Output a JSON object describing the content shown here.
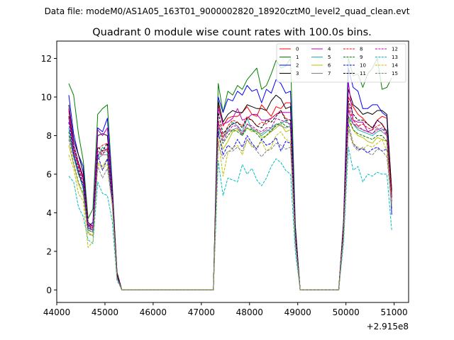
{
  "chart_data": {
    "type": "line",
    "suptitle": "Data file: modeM0/AS1A05_163T01_9000002820_18920cztM0_level2_quad_clean.evt",
    "title": "Quadrant 0 module wise count rates with 100.0s bins.",
    "xlabel": "",
    "ylabel": "",
    "x_offset_label": "+2.915e8",
    "xlim": [
      44000,
      51300
    ],
    "ylim": [
      -0.65,
      12.9
    ],
    "xticks": [
      44000,
      45000,
      46000,
      47000,
      48000,
      49000,
      50000,
      51000
    ],
    "xtick_labels": [
      "44000",
      "45000",
      "46000",
      "47000",
      "48000",
      "49000",
      "50000",
      "51000"
    ],
    "yticks": [
      0,
      2,
      4,
      6,
      8,
      10,
      12
    ],
    "ytick_labels": [
      "0",
      "2",
      "4",
      "6",
      "8",
      "10",
      "12"
    ],
    "grid": false,
    "legend_position": "top-right",
    "legend_columns": 4,
    "segments": [
      {
        "start": 44250,
        "step": 100,
        "count": 10
      },
      {
        "start": 45250,
        "step": 100,
        "count": 21
      },
      {
        "start": 47350,
        "step": 100,
        "count": 16
      },
      {
        "start": 48950,
        "step": 100,
        "count": 2
      },
      {
        "start": 49050,
        "step": 100,
        "count": 10
      },
      {
        "start": 50050,
        "step": 100,
        "count": 10
      }
    ],
    "series": [
      {
        "name": "0",
        "color": "#ff0000",
        "dash": "solid",
        "values": [
          9.3,
          7.2,
          6.5,
          5.8,
          3.4,
          3.2,
          7.0,
          7.2,
          7.3,
          5.0,
          0.8,
          0,
          0,
          0,
          0,
          0,
          0,
          0,
          0,
          0,
          0,
          0,
          0,
          0,
          0,
          0,
          0,
          0,
          0,
          0,
          0,
          9.6,
          8.5,
          8.9,
          9.0,
          9.0,
          9.2,
          9.5,
          9.1,
          9.0,
          9.6,
          9.3,
          9.0,
          9.5,
          9.4,
          9.7,
          9.7,
          3.0,
          0,
          0,
          0,
          0,
          0,
          0,
          0,
          0,
          0,
          0,
          3.5,
          10.0,
          9.5,
          9.1,
          8.9,
          8.6,
          8.4,
          8.8,
          9.0,
          8.9,
          5.2
        ]
      },
      {
        "name": "1",
        "color": "#008000",
        "dash": "solid",
        "values": [
          10.7,
          10.1,
          8.1,
          6.7,
          3.7,
          4.2,
          9.1,
          9.4,
          9.6,
          5.6,
          0.9,
          0,
          0,
          0,
          0,
          0,
          0,
          0,
          0,
          0,
          0,
          0,
          0,
          0,
          0,
          0,
          0,
          0,
          0,
          0,
          0,
          10.7,
          9.2,
          10.3,
          10.1,
          10.6,
          10.4,
          10.9,
          11.2,
          11.5,
          10.4,
          10.6,
          11.2,
          11.9,
          11.5,
          11.6,
          12.0,
          3.4,
          0,
          0,
          0,
          0,
          0,
          0,
          0,
          0,
          0,
          0,
          3.6,
          12.0,
          11.1,
          11.2,
          10.5,
          11.2,
          11.5,
          12.0,
          10.4,
          10.5,
          11.0
        ]
      },
      {
        "name": "2",
        "color": "#0000ff",
        "dash": "solid",
        "values": [
          10.1,
          8.1,
          7.0,
          6.4,
          3.3,
          3.5,
          8.4,
          8.2,
          8.9,
          5.3,
          0.9,
          0,
          0,
          0,
          0,
          0,
          0,
          0,
          0,
          0,
          0,
          0,
          0,
          0,
          0,
          0,
          0,
          0,
          0,
          0,
          0,
          10.0,
          9.2,
          9.9,
          9.8,
          10.3,
          10.1,
          10.6,
          10.3,
          10.4,
          9.7,
          10.4,
          10.2,
          10.9,
          10.7,
          10.2,
          10.3,
          3.2,
          0,
          0,
          0,
          0,
          0,
          0,
          0,
          0,
          0,
          0,
          3.4,
          11.5,
          10.5,
          10.3,
          9.4,
          9.4,
          9.6,
          9.6,
          9.2,
          9.0,
          3.9
        ]
      },
      {
        "name": "3",
        "color": "#000000",
        "dash": "solid",
        "values": [
          9.6,
          7.8,
          7.0,
          6.1,
          3.5,
          3.3,
          8.0,
          8.1,
          8.0,
          5.2,
          0.9,
          0,
          0,
          0,
          0,
          0,
          0,
          0,
          0,
          0,
          0,
          0,
          0,
          0,
          0,
          0,
          0,
          0,
          0,
          0,
          0,
          9.8,
          8.7,
          9.1,
          9.3,
          9.2,
          9.2,
          9.6,
          9.5,
          9.4,
          9.4,
          9.3,
          9.8,
          10.1,
          9.9,
          9.4,
          9.5,
          3.0,
          0,
          0,
          0,
          0,
          0,
          0,
          0,
          0,
          0,
          0,
          3.3,
          10.4,
          9.6,
          9.4,
          9.1,
          9.2,
          9.1,
          9.3,
          9.3,
          9.1,
          5.1
        ]
      },
      {
        "name": "4",
        "color": "#bf00bf",
        "dash": "solid",
        "values": [
          9.4,
          7.6,
          6.6,
          5.9,
          3.4,
          3.3,
          8.3,
          8.0,
          8.4,
          5.1,
          0.8,
          0,
          0,
          0,
          0,
          0,
          0,
          0,
          0,
          0,
          0,
          0,
          0,
          0,
          0,
          0,
          0,
          0,
          0,
          0,
          0,
          9.4,
          8.6,
          8.7,
          8.9,
          9.4,
          8.8,
          8.9,
          9.1,
          9.1,
          8.8,
          8.8,
          8.9,
          9.1,
          9.2,
          9.2,
          9.2,
          2.9,
          0,
          0,
          0,
          0,
          0,
          0,
          0,
          0,
          0,
          0,
          3.3,
          10.8,
          8.8,
          8.7,
          8.7,
          8.2,
          8.3,
          8.8,
          8.6,
          8.2,
          4.9
        ]
      },
      {
        "name": "5",
        "color": "#20b2aa",
        "dash": "solid",
        "values": [
          8.4,
          7.1,
          6.2,
          5.2,
          3.2,
          3.1,
          6.9,
          7.4,
          7.2,
          4.8,
          0.7,
          0,
          0,
          0,
          0,
          0,
          0,
          0,
          0,
          0,
          0,
          0,
          0,
          0,
          0,
          0,
          0,
          0,
          0,
          0,
          0,
          8.4,
          7.9,
          8.3,
          8.7,
          8.5,
          8.2,
          8.9,
          8.3,
          8.2,
          8.0,
          8.2,
          8.4,
          8.6,
          8.6,
          8.8,
          8.5,
          2.7,
          0,
          0,
          0,
          0,
          0,
          0,
          0,
          0,
          0,
          0,
          3.0,
          9.0,
          8.6,
          8.3,
          8.2,
          8.1,
          8.0,
          8.2,
          8.3,
          8.3,
          4.6
        ]
      },
      {
        "name": "6",
        "color": "#bfbf00",
        "dash": "solid",
        "values": [
          7.5,
          6.5,
          5.5,
          4.9,
          3.0,
          2.8,
          6.6,
          6.4,
          6.8,
          4.6,
          0.6,
          0,
          0,
          0,
          0,
          0,
          0,
          0,
          0,
          0,
          0,
          0,
          0,
          0,
          0,
          0,
          0,
          0,
          0,
          0,
          0,
          8.1,
          7.3,
          7.7,
          8.2,
          8.3,
          8.1,
          8.4,
          8.2,
          8.3,
          7.9,
          8.0,
          8.2,
          8.4,
          8.6,
          8.2,
          8.3,
          2.6,
          0,
          0,
          0,
          0,
          0,
          0,
          0,
          0,
          0,
          0,
          2.9,
          8.8,
          8.3,
          8.0,
          7.9,
          7.7,
          7.6,
          7.9,
          7.8,
          7.7,
          4.4
        ]
      },
      {
        "name": "7",
        "color": "#808080",
        "dash": "solid",
        "values": [
          8.0,
          6.9,
          6.0,
          5.5,
          3.1,
          3.0,
          6.8,
          7.0,
          7.0,
          4.7,
          0.7,
          0,
          0,
          0,
          0,
          0,
          0,
          0,
          0,
          0,
          0,
          0,
          0,
          0,
          0,
          0,
          0,
          0,
          0,
          0,
          0,
          8.5,
          7.9,
          8.2,
          8.3,
          8.4,
          8.0,
          8.6,
          8.4,
          8.2,
          8.1,
          8.3,
          8.2,
          8.6,
          8.5,
          8.4,
          8.5,
          2.7,
          0,
          0,
          0,
          0,
          0,
          0,
          0,
          0,
          0,
          0,
          3.0,
          9.3,
          8.6,
          8.4,
          8.3,
          8.2,
          8.1,
          8.4,
          8.2,
          8.0,
          4.5
        ]
      },
      {
        "name": "8",
        "color": "#ff0000",
        "dash": "dashed",
        "values": [
          8.7,
          7.3,
          6.3,
          5.4,
          3.2,
          3.1,
          7.3,
          7.5,
          7.6,
          4.9,
          0.7,
          0,
          0,
          0,
          0,
          0,
          0,
          0,
          0,
          0,
          0,
          0,
          0,
          0,
          0,
          0,
          0,
          0,
          0,
          0,
          0,
          8.8,
          7.9,
          8.5,
          8.8,
          8.7,
          8.5,
          9.0,
          8.8,
          8.5,
          8.7,
          8.6,
          8.9,
          9.1,
          9.3,
          8.9,
          8.8,
          2.8,
          0,
          0,
          0,
          0,
          0,
          0,
          0,
          0,
          0,
          0,
          3.1,
          9.6,
          8.8,
          8.5,
          8.6,
          8.4,
          8.3,
          8.5,
          8.6,
          8.2,
          4.8
        ]
      },
      {
        "name": "9",
        "color": "#008000",
        "dash": "dashed",
        "values": [
          8.2,
          7.0,
          6.0,
          5.3,
          3.1,
          3.0,
          6.9,
          7.1,
          7.2,
          4.7,
          0.7,
          0,
          0,
          0,
          0,
          0,
          0,
          0,
          0,
          0,
          0,
          0,
          0,
          0,
          0,
          0,
          0,
          0,
          0,
          0,
          0,
          8.3,
          7.6,
          8.0,
          8.3,
          8.2,
          8.0,
          8.4,
          8.3,
          8.1,
          7.8,
          8.0,
          8.3,
          8.5,
          8.7,
          8.5,
          8.4,
          2.7,
          0,
          0,
          0,
          0,
          0,
          0,
          0,
          0,
          0,
          0,
          3.0,
          9.0,
          8.3,
          8.1,
          8.0,
          7.9,
          7.8,
          8.0,
          8.0,
          7.7,
          4.5
        ]
      },
      {
        "name": "10",
        "color": "#0000ff",
        "dash": "dashed",
        "values": [
          8.7,
          7.0,
          6.1,
          5.4,
          3.2,
          3.1,
          7.0,
          6.2,
          6.8,
          4.7,
          0.7,
          0,
          0,
          0,
          0,
          0,
          0,
          0,
          0,
          0,
          0,
          0,
          0,
          0,
          0,
          0,
          0,
          0,
          0,
          0,
          0,
          8.2,
          7.0,
          7.5,
          7.3,
          7.8,
          7.4,
          8.0,
          7.6,
          7.3,
          7.8,
          7.5,
          7.6,
          7.9,
          7.2,
          7.7,
          7.6,
          2.5,
          0,
          0,
          0,
          0,
          0,
          0,
          0,
          0,
          0,
          0,
          2.8,
          8.6,
          7.6,
          7.3,
          7.3,
          7.1,
          7.3,
          7.4,
          7.2,
          7.3,
          4.2
        ]
      },
      {
        "name": "11",
        "color": "#000000",
        "dash": "dashed",
        "values": [
          9.0,
          7.4,
          6.6,
          5.7,
          3.3,
          3.2,
          7.4,
          7.2,
          7.6,
          5.0,
          0.8,
          0,
          0,
          0,
          0,
          0,
          0,
          0,
          0,
          0,
          0,
          0,
          0,
          0,
          0,
          0,
          0,
          0,
          0,
          0,
          0,
          9.2,
          8.1,
          8.4,
          8.6,
          8.7,
          8.4,
          8.9,
          8.8,
          8.5,
          8.4,
          8.8,
          8.7,
          9.0,
          9.3,
          8.8,
          8.8,
          2.9,
          0,
          0,
          0,
          0,
          0,
          0,
          0,
          0,
          0,
          0,
          3.2,
          9.8,
          9.1,
          8.8,
          8.8,
          8.6,
          8.4,
          8.8,
          8.6,
          8.1,
          4.8
        ]
      },
      {
        "name": "12",
        "color": "#bf00bf",
        "dash": "dashed",
        "values": [
          8.9,
          7.2,
          6.4,
          5.6,
          3.3,
          3.1,
          7.2,
          7.0,
          7.4,
          4.9,
          0.7,
          0,
          0,
          0,
          0,
          0,
          0,
          0,
          0,
          0,
          0,
          0,
          0,
          0,
          0,
          0,
          0,
          0,
          0,
          0,
          0,
          8.7,
          7.7,
          8.2,
          8.5,
          8.5,
          8.1,
          8.6,
          8.5,
          8.3,
          8.2,
          8.4,
          8.4,
          8.9,
          8.8,
          8.7,
          8.6,
          2.8,
          0,
          0,
          0,
          0,
          0,
          0,
          0,
          0,
          0,
          0,
          3.1,
          9.4,
          8.6,
          8.5,
          8.3,
          8.2,
          8.1,
          8.3,
          8.4,
          8.0,
          4.6
        ]
      },
      {
        "name": "13",
        "color": "#00bfbf",
        "dash": "dashed",
        "values": [
          5.9,
          5.6,
          4.3,
          3.8,
          2.6,
          2.4,
          5.6,
          5.0,
          4.9,
          3.6,
          0.5,
          0,
          0,
          0,
          0,
          0,
          0,
          0,
          0,
          0,
          0,
          0,
          0,
          0,
          0,
          0,
          0,
          0,
          0,
          0,
          0,
          6.7,
          4.9,
          5.8,
          5.7,
          5.6,
          6.5,
          6.0,
          6.3,
          5.7,
          5.4,
          5.8,
          6.4,
          6.8,
          6.6,
          6.2,
          6.0,
          2.0,
          0,
          0,
          0,
          0,
          0,
          0,
          0,
          0,
          0,
          0,
          2.4,
          7.4,
          6.2,
          6.4,
          5.6,
          6.0,
          5.9,
          6.1,
          6.0,
          6.0,
          3.1
        ]
      },
      {
        "name": "14",
        "color": "#bfbf00",
        "dash": "dashed",
        "values": [
          7.0,
          6.3,
          5.0,
          4.6,
          2.2,
          2.5,
          6.5,
          6.3,
          6.5,
          4.4,
          0.6,
          0,
          0,
          0,
          0,
          0,
          0,
          0,
          0,
          0,
          0,
          0,
          0,
          0,
          0,
          0,
          0,
          0,
          0,
          0,
          0,
          7.9,
          5.9,
          7.1,
          7.4,
          7.5,
          7.0,
          7.8,
          7.4,
          7.4,
          7.7,
          7.2,
          7.4,
          8.0,
          8.2,
          7.8,
          7.7,
          2.5,
          0,
          0,
          0,
          0,
          0,
          0,
          0,
          0,
          0,
          0,
          2.8,
          8.5,
          7.6,
          7.4,
          7.3,
          7.5,
          7.4,
          7.6,
          7.8,
          7.2,
          4.4
        ]
      },
      {
        "name": "15",
        "color": "#808080",
        "dash": "dashed",
        "values": [
          7.8,
          6.6,
          5.6,
          5.0,
          2.9,
          2.8,
          6.4,
          5.8,
          6.3,
          4.5,
          0.6,
          0,
          0,
          0,
          0,
          0,
          0,
          0,
          0,
          0,
          0,
          0,
          0,
          0,
          0,
          0,
          0,
          0,
          0,
          0,
          0,
          7.6,
          6.8,
          7.2,
          7.2,
          7.4,
          7.2,
          7.8,
          7.5,
          7.2,
          6.9,
          7.2,
          7.3,
          7.6,
          7.5,
          7.3,
          7.4,
          2.4,
          0,
          0,
          0,
          0,
          0,
          0,
          0,
          0,
          0,
          0,
          2.7,
          8.3,
          7.5,
          7.2,
          7.4,
          7.1,
          7.0,
          7.3,
          7.2,
          6.9,
          4.3
        ]
      }
    ]
  }
}
